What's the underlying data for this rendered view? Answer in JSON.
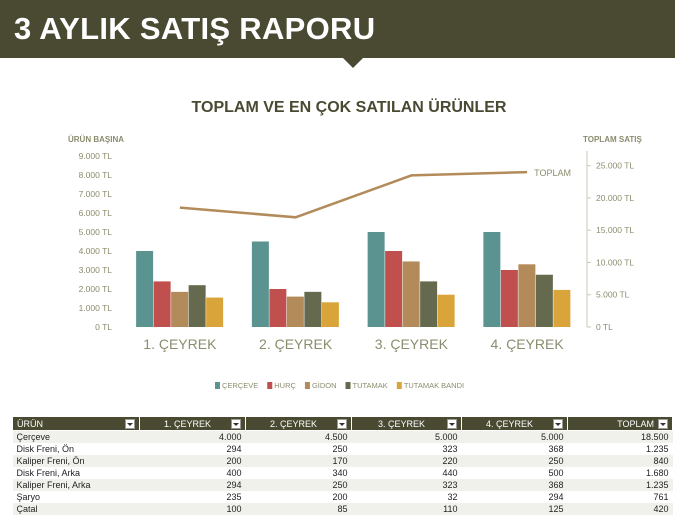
{
  "report": {
    "title": "3 AYLIK SATIŞ RAPORU"
  },
  "chart_data": {
    "type": "bar",
    "title": "TOPLAM VE EN ÇOK SATILAN ÜRÜNLER",
    "ylabel": "ÜRÜN BAŞINA",
    "y2label": "TOPLAM SATIŞ",
    "categories": [
      "1. ÇEYREK",
      "2. ÇEYREK",
      "3. ÇEYREK",
      "4. ÇEYREK"
    ],
    "ylim": [
      0,
      9000
    ],
    "y2lim": [
      0,
      26500
    ],
    "yticks": [
      "0 TL",
      "1.000 TL",
      "2.000 TL",
      "3.000 TL",
      "4.000 TL",
      "5.000 TL",
      "6.000 TL",
      "7.000 TL",
      "8.000 TL",
      "9.000 TL"
    ],
    "y2ticks": [
      "0 TL",
      "5.000 TL",
      "10.000 TL",
      "15.000 TL",
      "20.000 TL",
      "25.000 TL"
    ],
    "y2tick_values": [
      0,
      5000,
      10000,
      15000,
      20000,
      25000
    ],
    "series": [
      {
        "name": "ÇERÇEVE",
        "color": "#5b9391",
        "values": [
          4000,
          4500,
          5000,
          5000
        ]
      },
      {
        "name": "HURÇ",
        "color": "#c0504d",
        "values": [
          2400,
          2000,
          4000,
          3000
        ]
      },
      {
        "name": "GİDON",
        "color": "#b38b5b",
        "values": [
          1850,
          1600,
          3450,
          3300
        ]
      },
      {
        "name": "TUTAMAK",
        "color": "#65694d",
        "values": [
          2200,
          1850,
          2400,
          2750
        ]
      },
      {
        "name": "TUTAMAK BANDI",
        "color": "#d9a53b",
        "values": [
          1550,
          1300,
          1700,
          1950
        ]
      }
    ],
    "line": {
      "name": "TOPLAM",
      "color": "#b38b5b",
      "values": [
        18500,
        17000,
        23500,
        24000
      ]
    },
    "legend": "bottom",
    "grid": false
  },
  "table": {
    "headers": [
      "ÜRÜN",
      "1. ÇEYREK",
      "2. ÇEYREK",
      "3. ÇEYREK",
      "4. ÇEYREK",
      "TOPLAM"
    ],
    "rows": [
      [
        "Çerçeve",
        "4.000",
        "4.500",
        "5.000",
        "5.000",
        "18.500"
      ],
      [
        "Disk Freni, Ön",
        "294",
        "250",
        "323",
        "368",
        "1.235"
      ],
      [
        "Kaliper Freni, Ön",
        "200",
        "170",
        "220",
        "250",
        "840"
      ],
      [
        "Disk Freni, Arka",
        "400",
        "340",
        "440",
        "500",
        "1.680"
      ],
      [
        "Kaliper Freni, Arka",
        "294",
        "250",
        "323",
        "368",
        "1.235"
      ],
      [
        "Şaryo",
        "235",
        "200",
        "32",
        "294",
        "761"
      ],
      [
        "Çatal",
        "100",
        "85",
        "110",
        "125",
        "420"
      ]
    ]
  }
}
